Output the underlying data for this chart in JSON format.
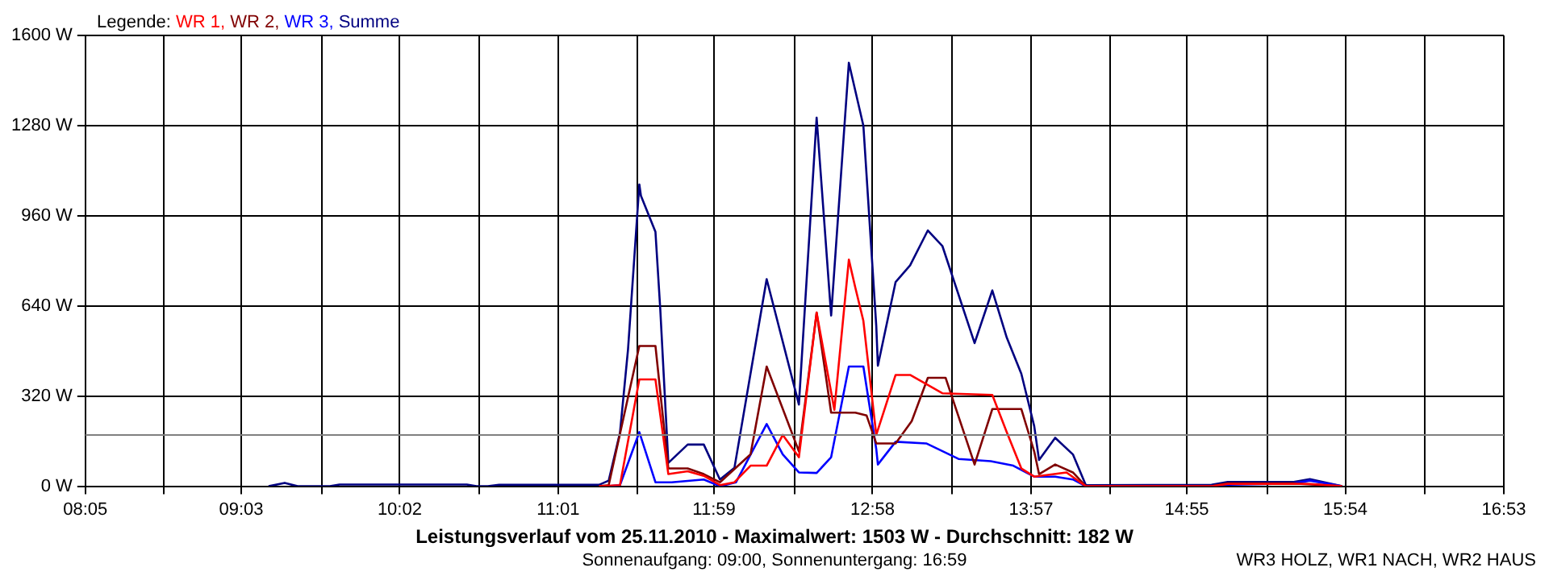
{
  "chart_data": {
    "type": "line",
    "title": "Leistungsverlauf vom 25.11.2010 - Maximalwert: 1503 W - Durchschnitt: 182 W",
    "subtitle": "Sonnenaufgang: 09:00, Sonnenuntergang: 16:59",
    "legend_title": "Legende:",
    "annotations": [
      "WR3 HOLZ, WR1 NACH, WR2 HAUS"
    ],
    "legend": "top left",
    "grid": true,
    "xlim": [
      8.0833,
      16.8833
    ],
    "xticks": [
      {
        "value": 8.0833,
        "label": "08:05"
      },
      {
        "value": 8.5722,
        "label": null
      },
      {
        "value": 9.05,
        "label": "09:03"
      },
      {
        "value": 9.55,
        "label": null
      },
      {
        "value": 10.0333,
        "label": "10:02"
      },
      {
        "value": 10.5278,
        "label": null
      },
      {
        "value": 11.0167,
        "label": "11:01"
      },
      {
        "value": 11.5056,
        "label": null
      },
      {
        "value": 11.9833,
        "label": "11:59"
      },
      {
        "value": 12.4833,
        "label": null
      },
      {
        "value": 12.9667,
        "label": "12:58"
      },
      {
        "value": 13.4611,
        "label": null
      },
      {
        "value": 13.95,
        "label": "13:57"
      },
      {
        "value": 14.4389,
        "label": null
      },
      {
        "value": 14.9167,
        "label": "14:55"
      },
      {
        "value": 15.4167,
        "label": null
      },
      {
        "value": 15.9,
        "label": "15:54"
      },
      {
        "value": 16.3944,
        "label": null
      },
      {
        "value": 16.8833,
        "label": "16:53"
      }
    ],
    "ylim": [
      0,
      1600
    ],
    "yticks": [
      {
        "value": 0,
        "label": "0 W"
      },
      {
        "value": 320,
        "label": "320 W"
      },
      {
        "value": 640,
        "label": "640 W"
      },
      {
        "value": 960,
        "label": "960 W"
      },
      {
        "value": 1280,
        "label": "1280 W"
      },
      {
        "value": 1600,
        "label": "1600 W"
      }
    ],
    "ref_lines": [
      {
        "axis": "y",
        "value": 182,
        "label": null,
        "color": "#808080"
      }
    ],
    "series": [
      {
        "name": "WR 1,",
        "color": "#ff0000",
        "x": [
          11.27,
          11.4,
          11.52,
          11.62,
          11.7,
          11.82,
          11.92,
          12.02,
          12.11,
          12.21,
          12.31,
          12.41,
          12.51,
          12.62,
          12.73,
          12.82,
          12.86,
          12.91,
          12.99,
          13.11,
          13.2,
          13.4,
          13.71,
          13.8,
          13.89,
          13.97,
          14.17,
          14.29,
          15.07,
          15.17,
          15.68,
          15.88
        ],
        "values": [
          0,
          4,
          379,
          379,
          43,
          53,
          37,
          4,
          14,
          73,
          73,
          182,
          103,
          616,
          271,
          804,
          705,
          587,
          182,
          395,
          395,
          330,
          324,
          191,
          63,
          34,
          49,
          0,
          0,
          8,
          8,
          0
        ]
      },
      {
        "name": "WR 2,",
        "color": "#800000",
        "x": [
          11.27,
          11.33,
          11.52,
          11.62,
          11.7,
          11.82,
          11.92,
          12.02,
          12.21,
          12.31,
          12.51,
          12.62,
          12.71,
          12.86,
          12.93,
          12.99,
          13.11,
          13.21,
          13.31,
          13.42,
          13.6,
          13.71,
          13.89,
          13.97,
          14.0,
          14.1,
          14.21,
          14.29,
          15.07,
          15.17,
          15.58,
          15.88
        ],
        "values": [
          0,
          4,
          498,
          498,
          63,
          63,
          43,
          14,
          113,
          425,
          124,
          616,
          261,
          261,
          251,
          152,
          152,
          231,
          385,
          385,
          77,
          274,
          274,
          123,
          43,
          77,
          49,
          0,
          0,
          10,
          10,
          0
        ]
      },
      {
        "name": "WR 3,",
        "color": "#0000ff",
        "x": [
          11.33,
          11.4,
          11.52,
          11.62,
          11.72,
          11.92,
          12.02,
          12.12,
          12.31,
          12.41,
          12.51,
          12.62,
          12.71,
          12.82,
          12.91,
          12.99,
          13.0,
          13.11,
          13.3,
          13.5,
          13.7,
          13.84,
          13.97,
          14.1,
          14.21,
          14.29,
          15.07,
          15.17,
          15.58,
          15.68,
          15.88
        ],
        "values": [
          0,
          4,
          192,
          14,
          14,
          24,
          0,
          14,
          221,
          113,
          49,
          47,
          103,
          425,
          425,
          132,
          77,
          158,
          152,
          97,
          89,
          73,
          34,
          34,
          24,
          0,
          0,
          5,
          10,
          20,
          0
        ]
      },
      {
        "name": "Summe",
        "color": "#000080",
        "x": [
          9.22,
          9.32,
          9.4,
          9.6,
          9.66,
          10.45,
          10.51,
          10.58,
          10.65,
          11.27,
          11.33,
          11.4,
          11.45,
          11.52,
          11.53,
          11.62,
          11.65,
          11.7,
          11.82,
          11.92,
          12.02,
          12.11,
          12.31,
          12.51,
          12.62,
          12.71,
          12.82,
          12.91,
          12.99,
          13.0,
          13.11,
          13.2,
          13.31,
          13.4,
          13.6,
          13.71,
          13.8,
          13.89,
          13.97,
          14.0,
          14.1,
          14.21,
          14.29,
          15.07,
          15.17,
          15.58,
          15.68,
          15.88
        ],
        "values": [
          0,
          12,
          0,
          0,
          6,
          6,
          0,
          0,
          5,
          5,
          20,
          190,
          486,
          1071,
          1031,
          903,
          628,
          83,
          148,
          148,
          24,
          65,
          735,
          290,
          1308,
          606,
          1503,
          1280,
          569,
          428,
          725,
          784,
          908,
          853,
          508,
          695,
          527,
          399,
          213,
          93,
          172,
          113,
          4,
          5,
          15,
          15,
          25,
          0
        ]
      }
    ]
  }
}
